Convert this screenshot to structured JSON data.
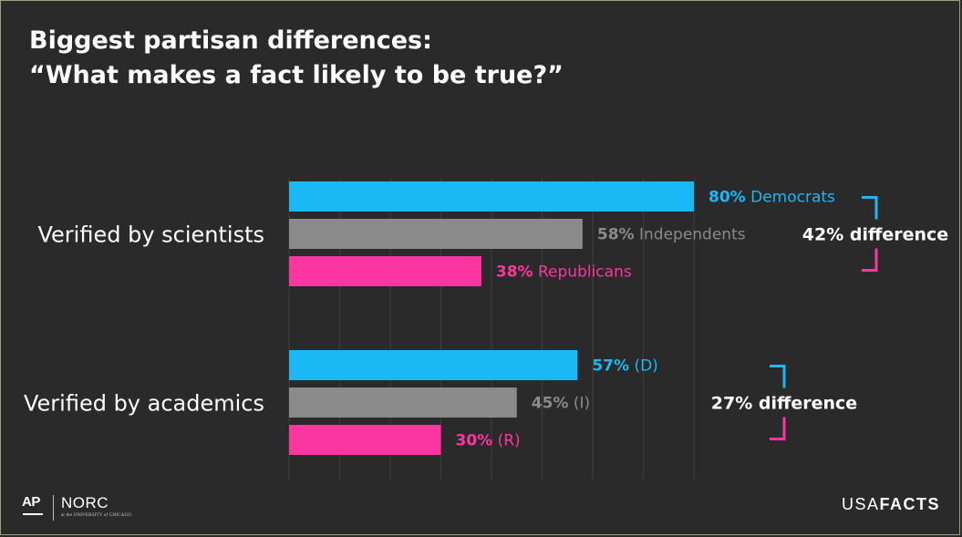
{
  "title": {
    "line1": "Biggest partisan differences:",
    "line2": "“What makes a fact likely to be true?”"
  },
  "chart_data": {
    "type": "bar",
    "orientation": "horizontal",
    "categories": [
      "Verified by scientists",
      "Verified by academics"
    ],
    "series": [
      {
        "name": "Democrats",
        "color": "#1ab8f5",
        "values": [
          80,
          57
        ],
        "labels": [
          "80% Democrats",
          "57% (D)"
        ],
        "label_values": [
          "80%",
          "57%"
        ],
        "label_names": [
          " Democrats",
          " (D)"
        ]
      },
      {
        "name": "Independents",
        "color": "#8a8a8a",
        "values": [
          58,
          45
        ],
        "labels": [
          "58% Independents",
          "45% (I)"
        ],
        "label_values": [
          "58%",
          "45%"
        ],
        "label_names": [
          " Independents",
          " (I)"
        ]
      },
      {
        "name": "Republicans",
        "color": "#fc36a1",
        "values": [
          38,
          30
        ],
        "labels": [
          "38% Republicans",
          "30% (R)"
        ],
        "label_values": [
          "38%",
          "30%"
        ],
        "label_names": [
          " Republicans",
          " (R)"
        ]
      }
    ],
    "annotations": [
      "42% difference",
      "27% difference"
    ],
    "xlim": [
      0,
      100
    ],
    "grid": true
  },
  "footer": {
    "logo_ap": "AP",
    "logo_norc": "NORC",
    "logo_norc_sub": "at the UNIVERSITY of CHICAGO",
    "brand_left": "USA",
    "brand_right": "FACTS"
  }
}
